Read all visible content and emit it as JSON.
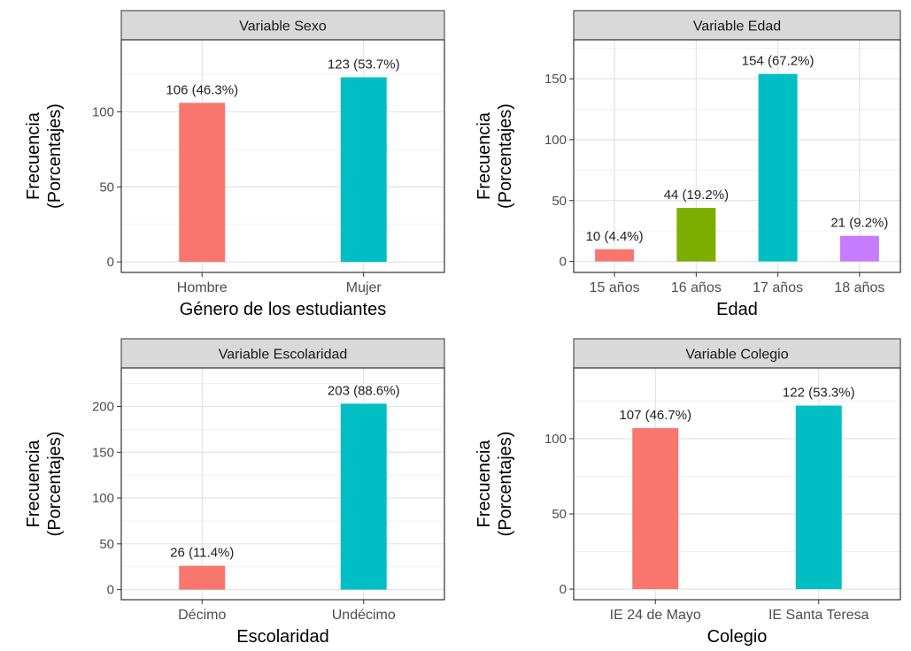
{
  "chart_data": [
    {
      "type": "bar",
      "strip_title": "Variable Sexo",
      "xlabel": "Género de los estudiantes",
      "ylabel_lines": [
        "Frecuencia",
        "(Porcentajes)"
      ],
      "categories": [
        "Hombre",
        "Mujer"
      ],
      "values": [
        106,
        123
      ],
      "labels": [
        "106 (46.3%)",
        "123 (53.7%)"
      ],
      "colors": [
        "#F8766D",
        "#00BFC4"
      ],
      "yticks": [
        0,
        50,
        100
      ],
      "ylim": [
        -7,
        148
      ],
      "grid": true
    },
    {
      "type": "bar",
      "strip_title": "Variable Edad",
      "xlabel": "Edad",
      "ylabel_lines": [
        "Frecuencia",
        "(Porcentajes)"
      ],
      "categories": [
        "15 años",
        "16 años",
        "17 años",
        "18 años"
      ],
      "values": [
        10,
        44,
        154,
        21
      ],
      "labels": [
        "10 (4.4%)",
        "44 (19.2%)",
        "154 (67.2%)",
        "21 (9.2%)"
      ],
      "colors": [
        "#F8766D",
        "#7CAE00",
        "#00BFC4",
        "#C77CFF"
      ],
      "yticks": [
        0,
        50,
        100,
        150
      ],
      "ylim": [
        -9,
        182
      ],
      "grid": true
    },
    {
      "type": "bar",
      "strip_title": "Variable Escolaridad",
      "xlabel": "Escolaridad",
      "ylabel_lines": [
        "Frecuencia",
        "(Porcentajes)"
      ],
      "categories": [
        "Décimo",
        "Undécimo"
      ],
      "values": [
        26,
        203
      ],
      "labels": [
        "26 (11.4%)",
        "203 (88.6%)"
      ],
      "colors": [
        "#F8766D",
        "#00BFC4"
      ],
      "yticks": [
        0,
        50,
        100,
        150,
        200
      ],
      "ylim": [
        -11,
        242
      ],
      "grid": true
    },
    {
      "type": "bar",
      "strip_title": "Variable Colegio",
      "xlabel": "Colegio",
      "ylabel_lines": [
        "Frecuencia",
        "(Porcentajes)"
      ],
      "categories": [
        "IE 24 de Mayo",
        "IE Santa Teresa"
      ],
      "values": [
        107,
        122
      ],
      "labels": [
        "107 (46.7%)",
        "122 (53.3%)"
      ],
      "colors": [
        "#F8766D",
        "#00BFC4"
      ],
      "yticks": [
        0,
        50,
        100
      ],
      "ylim": [
        -7,
        147
      ],
      "grid": true
    }
  ]
}
